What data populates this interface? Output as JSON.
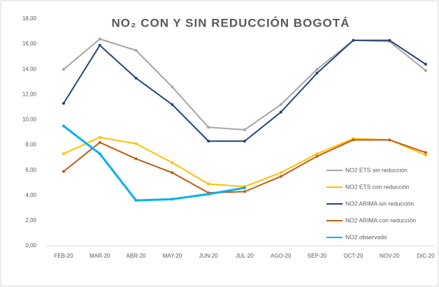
{
  "chart_data": {
    "type": "line",
    "title": "NO₂ CON Y SIN REDUCCIÓN BOGOTÁ",
    "categories": [
      "FEB-20",
      "MAR-20",
      "ABR-20",
      "MAY-20",
      "JUN-20",
      "JUL-20",
      "AGO-20",
      "SEP-20",
      "OCT-20",
      "NOV-20",
      "DIC-20"
    ],
    "ylim": [
      0,
      18
    ],
    "yticks": [
      {
        "value": 0,
        "label": "0,00"
      },
      {
        "value": 2,
        "label": "2,00"
      },
      {
        "value": 4,
        "label": "4,00"
      },
      {
        "value": 6,
        "label": "6,00"
      },
      {
        "value": 8,
        "label": "8,00"
      },
      {
        "value": 10,
        "label": "10,00"
      },
      {
        "value": 12,
        "label": "12,00"
      },
      {
        "value": 14,
        "label": "14,00"
      },
      {
        "value": 16,
        "label": "16,00"
      },
      {
        "value": 18,
        "label": "18,00"
      }
    ],
    "grid": false,
    "legend": "right",
    "series": [
      {
        "name": "NO2 ETS sin reducción",
        "color": "#a5a5a5",
        "values": [
          14.0,
          16.4,
          15.5,
          12.6,
          9.4,
          9.2,
          11.2,
          14.0,
          16.3,
          16.2,
          13.9
        ]
      },
      {
        "name": "NO2 ETS con reducción",
        "color": "#ffc000",
        "values": [
          7.3,
          8.6,
          8.1,
          6.6,
          4.9,
          4.7,
          5.8,
          7.3,
          8.5,
          8.4,
          7.2
        ]
      },
      {
        "name": "NO2 ARIMA sin reducción",
        "color": "#264478",
        "values": [
          11.3,
          15.9,
          13.3,
          11.2,
          8.3,
          8.3,
          10.6,
          13.7,
          16.3,
          16.3,
          14.4
        ]
      },
      {
        "name": "NO2 ARIMA con reducción",
        "color": "#c55a11",
        "values": [
          5.9,
          8.2,
          6.9,
          5.8,
          4.2,
          4.3,
          5.5,
          7.1,
          8.4,
          8.4,
          7.4
        ]
      },
      {
        "name": "NO2 observado",
        "color": "#00b0f0",
        "values": [
          9.5,
          7.3,
          3.6,
          3.7,
          4.1,
          4.6,
          null,
          null,
          null,
          null,
          null
        ]
      }
    ]
  }
}
